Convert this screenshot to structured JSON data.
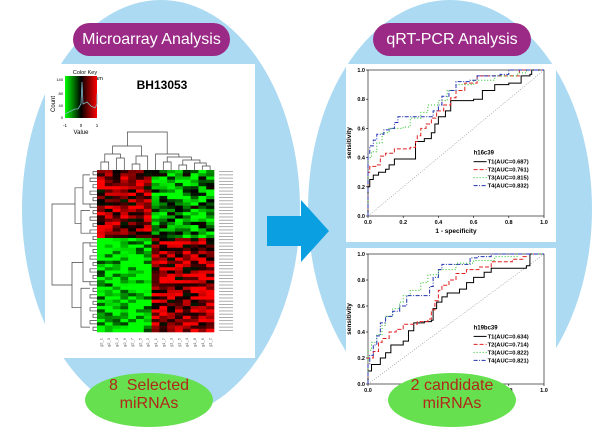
{
  "left_section": {
    "title": "Microarray Analysis",
    "heatmap": {
      "title": "BH13053",
      "color_key_title_line1": "Color Key",
      "color_key_title_line2": "and Histogram",
      "color_key_xlabel": "Value",
      "color_key_ylabel": "Count",
      "color_key_xticks": [
        "-1",
        "0",
        "1"
      ],
      "color_key_yticks": [
        "0",
        "40",
        "80",
        "140"
      ],
      "low_color": "#00ff00",
      "mid_color": "#000000",
      "high_color": "#ff0000",
      "columns": [
        "g2_1",
        "g2_3",
        "g2_4",
        "g2_6",
        "g2_7",
        "g2_5",
        "g2_2",
        "g1_1",
        "g1_7",
        "g1_3",
        "g1_5",
        "g1_4",
        "g1_8",
        "g1_6",
        "g1_2"
      ],
      "row_count": 50,
      "upper_block_rows": 21
    },
    "result_line1": "8  Selected",
    "result_line2": "miRNAs"
  },
  "arrow": {
    "icon": "right-arrow-icon",
    "color": "#0a9fe0"
  },
  "right_section": {
    "title": "qRT-PCR Analysis",
    "result_line1": "2 candidate",
    "result_line2": "miRNAs"
  },
  "chart_data": [
    {
      "type": "line",
      "title": "h16c39",
      "xlabel": "1 - specificity",
      "ylabel": "sensitivity",
      "xlim": [
        0,
        1
      ],
      "ylim": [
        0,
        1
      ],
      "xticks": [
        "0.0",
        "0.2",
        "0.4",
        "0.6",
        "0.8",
        "1.0"
      ],
      "yticks": [
        "0.0",
        "0.2",
        "0.4",
        "0.6",
        "0.8",
        "1.0"
      ],
      "legend_position": "bottom-right",
      "series": [
        {
          "name": "T1(AUC=0.687)",
          "color": "#000000",
          "dash": "solid",
          "points": [
            [
              0,
              0
            ],
            [
              0,
              0.2
            ],
            [
              0.01,
              0.25
            ],
            [
              0.03,
              0.28
            ],
            [
              0.06,
              0.3
            ],
            [
              0.1,
              0.32
            ],
            [
              0.12,
              0.35
            ],
            [
              0.15,
              0.39
            ],
            [
              0.27,
              0.39
            ],
            [
              0.27,
              0.51
            ],
            [
              0.32,
              0.53
            ],
            [
              0.36,
              0.57
            ],
            [
              0.38,
              0.63
            ],
            [
              0.4,
              0.68
            ],
            [
              0.44,
              0.72
            ],
            [
              0.47,
              0.79
            ],
            [
              0.6,
              0.8
            ],
            [
              0.65,
              0.86
            ],
            [
              0.72,
              0.9
            ],
            [
              0.8,
              0.91
            ],
            [
              0.87,
              0.96
            ],
            [
              0.92,
              0.97
            ],
            [
              0.93,
              1.0
            ],
            [
              1.0,
              1.0
            ]
          ]
        },
        {
          "name": "T2(AUC=0.761)",
          "color": "#e02020",
          "dash": "dashed",
          "points": [
            [
              0,
              0
            ],
            [
              0,
              0.3
            ],
            [
              0.01,
              0.34
            ],
            [
              0.05,
              0.35
            ],
            [
              0.07,
              0.41
            ],
            [
              0.1,
              0.43
            ],
            [
              0.15,
              0.46
            ],
            [
              0.24,
              0.47
            ],
            [
              0.27,
              0.51
            ],
            [
              0.28,
              0.55
            ],
            [
              0.3,
              0.6
            ],
            [
              0.33,
              0.63
            ],
            [
              0.36,
              0.67
            ],
            [
              0.39,
              0.72
            ],
            [
              0.43,
              0.76
            ],
            [
              0.47,
              0.81
            ],
            [
              0.5,
              0.86
            ],
            [
              0.55,
              0.91
            ],
            [
              0.62,
              0.96
            ],
            [
              0.78,
              0.96
            ],
            [
              0.86,
              1.0
            ],
            [
              1.0,
              1.0
            ]
          ]
        },
        {
          "name": "T3(AUC=0.815)",
          "color": "#20c020",
          "dash": "dotted",
          "points": [
            [
              0,
              0
            ],
            [
              0,
              0.4
            ],
            [
              0.02,
              0.44
            ],
            [
              0.05,
              0.5
            ],
            [
              0.08,
              0.57
            ],
            [
              0.12,
              0.6
            ],
            [
              0.2,
              0.61
            ],
            [
              0.24,
              0.67
            ],
            [
              0.3,
              0.71
            ],
            [
              0.34,
              0.76
            ],
            [
              0.4,
              0.79
            ],
            [
              0.45,
              0.86
            ],
            [
              0.5,
              0.9
            ],
            [
              0.6,
              0.93
            ],
            [
              0.72,
              0.96
            ],
            [
              0.85,
              0.98
            ],
            [
              0.9,
              1.0
            ],
            [
              1.0,
              1.0
            ]
          ]
        },
        {
          "name": "T4(AUC=0.832)",
          "color": "#2030b0",
          "dash": "dashdot",
          "points": [
            [
              0,
              0
            ],
            [
              0,
              0.43
            ],
            [
              0.01,
              0.48
            ],
            [
              0.03,
              0.52
            ],
            [
              0.05,
              0.56
            ],
            [
              0.09,
              0.59
            ],
            [
              0.13,
              0.6
            ],
            [
              0.15,
              0.64
            ],
            [
              0.17,
              0.68
            ],
            [
              0.35,
              0.68
            ],
            [
              0.37,
              0.72
            ],
            [
              0.4,
              0.76
            ],
            [
              0.42,
              0.82
            ],
            [
              0.46,
              0.86
            ],
            [
              0.5,
              0.92
            ],
            [
              0.58,
              0.93
            ],
            [
              0.62,
              0.96
            ],
            [
              0.75,
              0.97
            ],
            [
              0.8,
              1.0
            ],
            [
              1.0,
              1.0
            ]
          ]
        }
      ]
    },
    {
      "type": "line",
      "title": "h19bc39",
      "xlabel": "1 - specificity",
      "ylabel": "sensitivity",
      "xlim": [
        0,
        1
      ],
      "ylim": [
        0,
        1
      ],
      "xticks": [
        "0.0",
        "0.2",
        "0.4",
        "0.6",
        "0.8",
        "1.0"
      ],
      "yticks": [
        "0.0",
        "0.2",
        "0.4",
        "0.6",
        "0.8",
        "1.0"
      ],
      "legend_position": "bottom-right",
      "series": [
        {
          "name": "T1(AUC=0.634)",
          "color": "#000000",
          "dash": "solid",
          "points": [
            [
              0,
              0
            ],
            [
              0,
              0.1
            ],
            [
              0.02,
              0.15
            ],
            [
              0.07,
              0.2
            ],
            [
              0.1,
              0.24
            ],
            [
              0.13,
              0.3
            ],
            [
              0.2,
              0.33
            ],
            [
              0.23,
              0.41
            ],
            [
              0.26,
              0.47
            ],
            [
              0.32,
              0.48
            ],
            [
              0.36,
              0.49
            ],
            [
              0.37,
              0.58
            ],
            [
              0.39,
              0.63
            ],
            [
              0.42,
              0.67
            ],
            [
              0.45,
              0.7
            ],
            [
              0.52,
              0.73
            ],
            [
              0.56,
              0.78
            ],
            [
              0.6,
              0.82
            ],
            [
              0.66,
              0.86
            ],
            [
              0.7,
              0.89
            ],
            [
              0.8,
              0.89
            ],
            [
              0.9,
              0.91
            ],
            [
              0.92,
              1.0
            ],
            [
              1.0,
              1.0
            ]
          ]
        },
        {
          "name": "T2(AUC=0.714)",
          "color": "#e02020",
          "dash": "dashed",
          "points": [
            [
              0,
              0
            ],
            [
              0,
              0.2
            ],
            [
              0.03,
              0.25
            ],
            [
              0.06,
              0.32
            ],
            [
              0.08,
              0.35
            ],
            [
              0.12,
              0.4
            ],
            [
              0.16,
              0.42
            ],
            [
              0.2,
              0.46
            ],
            [
              0.28,
              0.48
            ],
            [
              0.34,
              0.5
            ],
            [
              0.36,
              0.57
            ],
            [
              0.38,
              0.64
            ],
            [
              0.4,
              0.72
            ],
            [
              0.42,
              0.76
            ],
            [
              0.46,
              0.8
            ],
            [
              0.5,
              0.85
            ],
            [
              0.56,
              0.88
            ],
            [
              0.63,
              0.9
            ],
            [
              0.7,
              0.94
            ],
            [
              0.82,
              0.96
            ],
            [
              0.88,
              0.98
            ],
            [
              0.9,
              1.0
            ],
            [
              1.0,
              1.0
            ]
          ]
        },
        {
          "name": "T3(AUC=0.822)",
          "color": "#20c020",
          "dash": "dotted",
          "points": [
            [
              0,
              0
            ],
            [
              0,
              0.26
            ],
            [
              0.02,
              0.32
            ],
            [
              0.05,
              0.38
            ],
            [
              0.08,
              0.45
            ],
            [
              0.1,
              0.52
            ],
            [
              0.14,
              0.58
            ],
            [
              0.18,
              0.63
            ],
            [
              0.2,
              0.68
            ],
            [
              0.24,
              0.72
            ],
            [
              0.3,
              0.78
            ],
            [
              0.34,
              0.84
            ],
            [
              0.4,
              0.88
            ],
            [
              0.5,
              0.93
            ],
            [
              0.6,
              0.95
            ],
            [
              0.72,
              0.98
            ],
            [
              0.85,
              1.0
            ],
            [
              1.0,
              1.0
            ]
          ]
        },
        {
          "name": "T4(AUC=0.821)",
          "color": "#2030b0",
          "dash": "dashdot",
          "points": [
            [
              0,
              0
            ],
            [
              0,
              0.15
            ],
            [
              0.01,
              0.22
            ],
            [
              0.03,
              0.3
            ],
            [
              0.05,
              0.37
            ],
            [
              0.07,
              0.47
            ],
            [
              0.1,
              0.52
            ],
            [
              0.14,
              0.56
            ],
            [
              0.18,
              0.6
            ],
            [
              0.22,
              0.68
            ],
            [
              0.32,
              0.68
            ],
            [
              0.35,
              0.75
            ],
            [
              0.37,
              0.82
            ],
            [
              0.4,
              0.88
            ],
            [
              0.42,
              0.92
            ],
            [
              0.5,
              0.92
            ],
            [
              0.58,
              0.97
            ],
            [
              0.62,
              0.98
            ],
            [
              0.7,
              1.0
            ],
            [
              1.0,
              1.0
            ]
          ]
        }
      ]
    }
  ]
}
